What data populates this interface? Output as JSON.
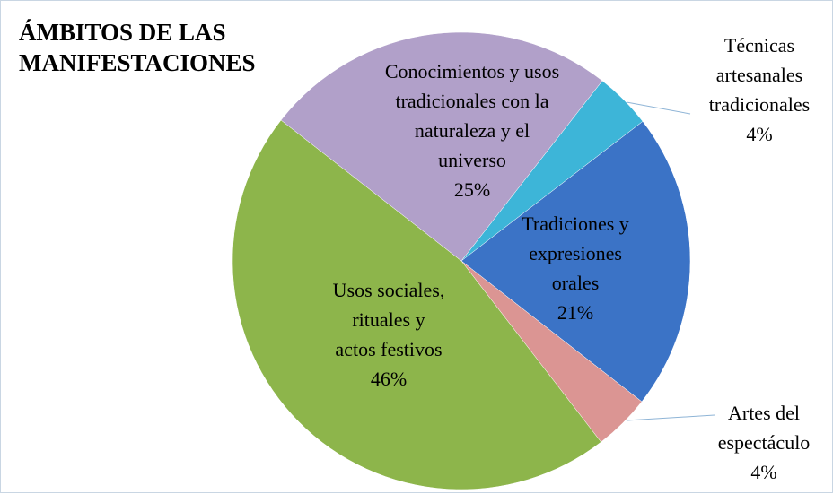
{
  "chart_data": {
    "type": "pie",
    "title": "ÁMBITOS DE LAS\nMANIFESTACIONES",
    "categories": [
      "Técnicas\nartesanales\ntradicionales",
      "Tradiciones y\nexpresiones\norales",
      "Artes del\nespectáculo",
      "Usos sociales,\nrituales y\nactos festivos",
      "Conocimientos y usos\ntradicionales con la\nnaturaleza y el\nuniverso"
    ],
    "values": [
      4,
      21,
      4,
      46,
      25
    ],
    "value_labels": [
      "4%",
      "21%",
      "4%",
      "46%",
      "25%"
    ],
    "colors": [
      "#3db5d8",
      "#3b73c6",
      "#db9593",
      "#8db54b",
      "#b1a0c9"
    ]
  }
}
